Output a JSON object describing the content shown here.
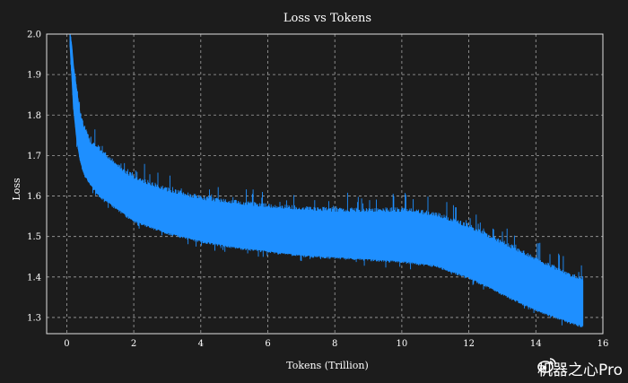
{
  "chart_data": {
    "type": "line",
    "title": "Loss vs Tokens",
    "xlabel": "Tokens (Trillion)",
    "ylabel": "Loss",
    "xlim": [
      -0.6,
      16
    ],
    "ylim": [
      1.26,
      2.0
    ],
    "xticks": [
      0,
      2,
      4,
      6,
      8,
      10,
      12,
      14,
      16
    ],
    "yticks": [
      1.3,
      1.4,
      1.5,
      1.6,
      1.7,
      1.8,
      1.9,
      2.0
    ],
    "grid": true,
    "series": [
      {
        "color": "#1e8fff",
        "x": [
          0.1,
          0.15,
          0.2,
          0.3,
          0.4,
          0.5,
          0.7,
          1.0,
          1.5,
          2.0,
          3.0,
          4.0,
          5.0,
          6.0,
          7.0,
          8.0,
          9.0,
          10.0,
          11.0,
          12.0,
          13.0,
          14.0,
          15.0,
          15.4
        ],
        "upper": [
          2.0,
          1.97,
          1.92,
          1.86,
          1.8,
          1.77,
          1.73,
          1.71,
          1.67,
          1.64,
          1.61,
          1.59,
          1.58,
          1.57,
          1.565,
          1.56,
          1.56,
          1.56,
          1.55,
          1.52,
          1.48,
          1.44,
          1.4,
          1.39
        ],
        "lower": [
          1.97,
          1.9,
          1.82,
          1.74,
          1.69,
          1.66,
          1.63,
          1.6,
          1.57,
          1.54,
          1.51,
          1.49,
          1.475,
          1.465,
          1.455,
          1.45,
          1.445,
          1.44,
          1.43,
          1.4,
          1.36,
          1.32,
          1.29,
          1.28
        ]
      }
    ]
  },
  "watermark": {
    "text": "机器之心Pro",
    "icon": "weibo-icon"
  }
}
